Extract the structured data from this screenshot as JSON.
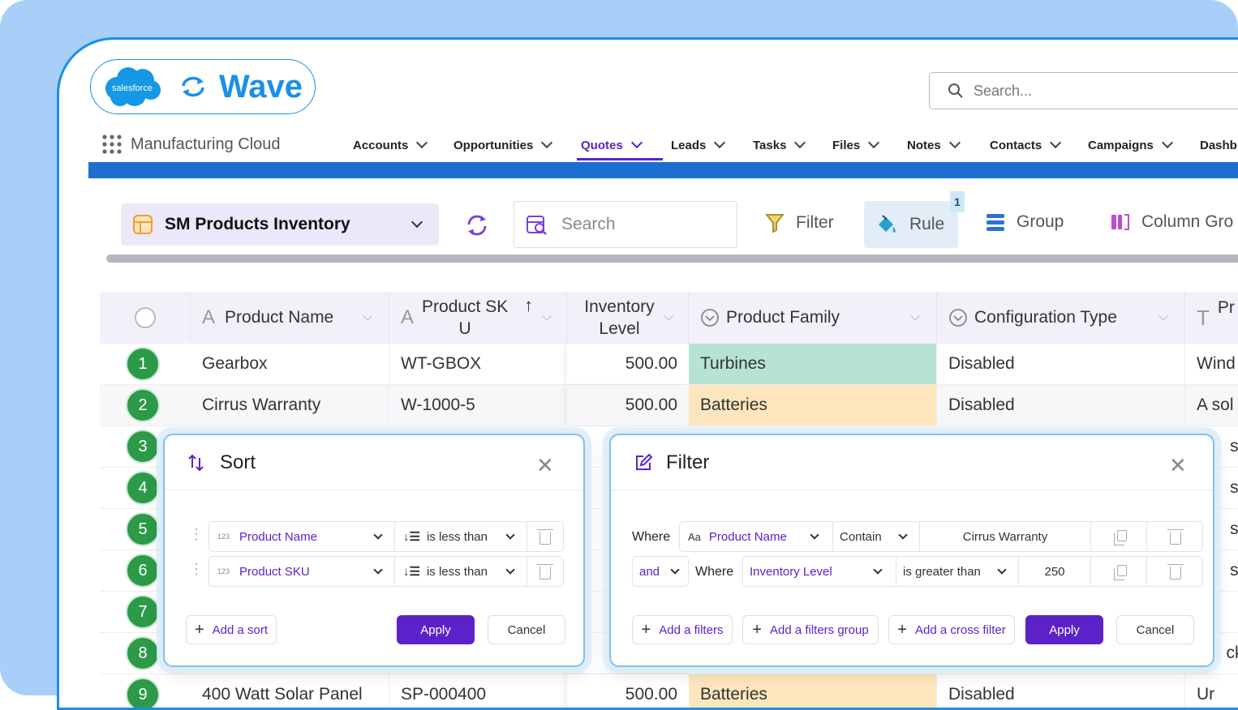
{
  "app": {
    "logo_badge": "salesforce",
    "logo_name": "Wave",
    "search_placeholder": "Search...",
    "app_name": "Manufacturing Cloud"
  },
  "nav": {
    "tabs": [
      {
        "label": "Accounts",
        "active": false
      },
      {
        "label": "Opportunities",
        "active": false
      },
      {
        "label": "Quotes",
        "active": true
      },
      {
        "label": "Leads",
        "active": false
      },
      {
        "label": "Tasks",
        "active": false
      },
      {
        "label": "Files",
        "active": false
      },
      {
        "label": "Notes",
        "active": false
      },
      {
        "label": "Contacts",
        "active": false
      },
      {
        "label": "Campaigns",
        "active": false
      },
      {
        "label": "Dashb",
        "active": false
      }
    ]
  },
  "toolbar": {
    "view_name": "SM Products Inventory",
    "search_placeholder": "Search",
    "filter_label": "Filter",
    "rule_label": "Rule",
    "rule_badge": "1",
    "group_label": "Group",
    "column_group_label": "Column Gro"
  },
  "table": {
    "columns": [
      "Product Name",
      "Product SK",
      "U",
      "Inventory",
      "Level",
      "Product Family",
      "Configuration Type",
      "Pr"
    ],
    "rows": [
      {
        "num": "1",
        "name": "Gearbox",
        "sku": "WT-GBOX",
        "inv": "500.00",
        "family": "Turbines",
        "config": "Disabled",
        "desc": "Wind"
      },
      {
        "num": "2",
        "name": "Cirrus Warranty",
        "sku": "W-1000-5",
        "inv": "500.00",
        "family": "Batteries",
        "config": "Disabled",
        "desc": "A sol"
      },
      {
        "num": "3",
        "desc": "sol"
      },
      {
        "num": "4",
        "desc": "sol"
      },
      {
        "num": "5",
        "desc": "sol"
      },
      {
        "num": "6",
        "desc": "sol"
      },
      {
        "num": "7"
      },
      {
        "num": "8",
        "desc": "cks"
      },
      {
        "num": "9",
        "name": "400 Watt Solar Panel",
        "sku": "SP-000400",
        "inv": "500.00",
        "family": "Batteries",
        "config": "Disabled",
        "desc": "Ur"
      }
    ]
  },
  "sort_panel": {
    "title": "Sort",
    "rules": [
      {
        "type_tag": "123",
        "field": "Product Name",
        "op": "is less than"
      },
      {
        "type_tag": "123",
        "field": "Product SKU",
        "op": "is less than"
      }
    ],
    "add_label": "Add a sort",
    "apply_label": "Apply",
    "cancel_label": "Cancel"
  },
  "filter_panel": {
    "title": "Filter",
    "row1": {
      "where": "Where",
      "type_tag": "Aa",
      "field": "Product Name",
      "op": "Contain",
      "value": "Cirrus Warranty"
    },
    "row2": {
      "conj": "and",
      "where": "Where",
      "field": "Inventory Level",
      "op": "is greater than",
      "value": "250"
    },
    "add_filter_label": "Add a filters",
    "add_group_label": "Add a filters group",
    "add_cross_label": "Add a cross filter",
    "apply_label": "Apply",
    "cancel_label": "Cancel"
  },
  "colors": {
    "brand_blue": "#1a8fe6",
    "accent_purple": "#5b22c9",
    "turbines_bg": "#b7e3d6",
    "batteries_bg": "#fde6bd",
    "row_badge": "#2c9a48"
  }
}
